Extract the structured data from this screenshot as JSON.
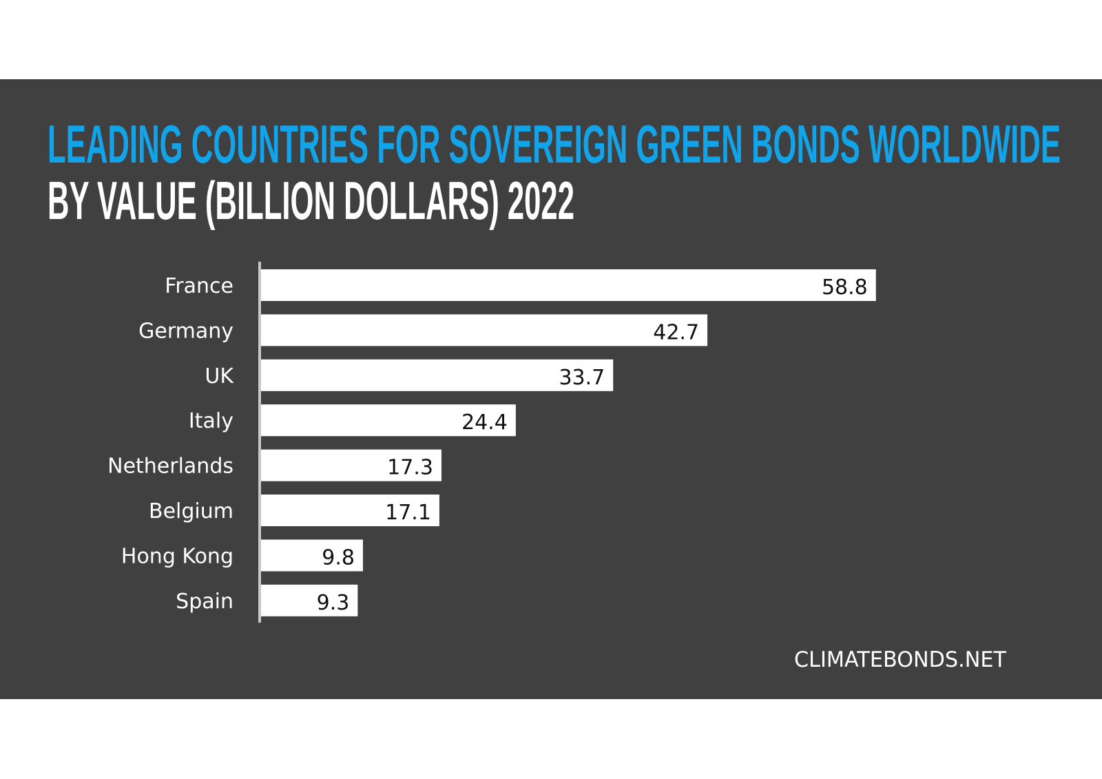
{
  "chart_data": {
    "type": "bar",
    "orientation": "horizontal",
    "title": "LEADING COUNTRIES FOR SOVEREIGN GREEN BONDS WORLDWIDE",
    "subtitle": "BY VALUE (BILLION DOLLARS) 2022",
    "categories": [
      "France",
      "Germany",
      "UK",
      "Italy",
      "Netherlands",
      "Belgium",
      "Hong Kong",
      "Spain"
    ],
    "values": [
      58.8,
      42.7,
      33.7,
      24.4,
      17.3,
      17.1,
      9.8,
      9.3
    ],
    "value_labels": [
      "58.8",
      "42.7",
      "33.7",
      "24.4",
      "17.3",
      "17.1",
      "9.8",
      "9.3"
    ],
    "xlim": [
      0,
      60
    ],
    "grid": false,
    "legend": "none",
    "source": "CLIMATEBONDS.NET",
    "colors": {
      "background": "#404040",
      "title": "#12a3e8",
      "subtitle": "#ffffff",
      "bar": "#ffffff",
      "axis": "#c8c8c8"
    }
  }
}
